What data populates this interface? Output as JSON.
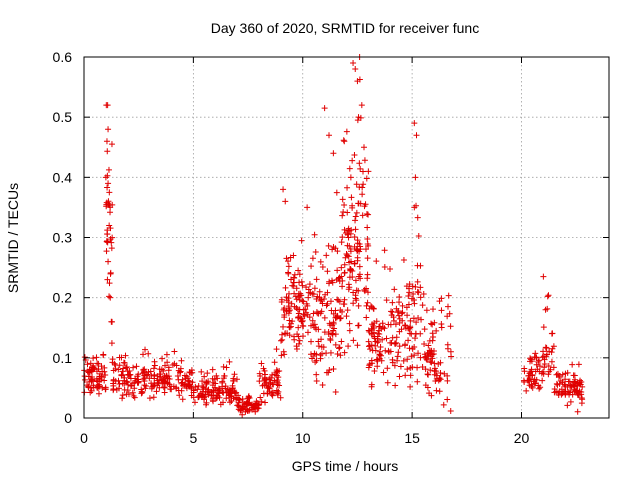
{
  "chart_data": {
    "type": "scatter",
    "title": "Day 360 of 2020, SRMTID for receiver func",
    "xlabel": "GPS time / hours",
    "ylabel": "SRMTID / TECUs",
    "xlim": [
      0,
      24
    ],
    "ylim": [
      0,
      0.6
    ],
    "xticks": [
      0,
      5,
      10,
      15,
      20
    ],
    "xtick_labels": [
      "0",
      "5",
      "10",
      "15",
      "20"
    ],
    "yticks": [
      0,
      0.1,
      0.2,
      0.3,
      0.4,
      0.5,
      0.6
    ],
    "ytick_labels": [
      "0",
      "0.1",
      "0.2",
      "0.3",
      "0.4",
      "0.5",
      "0.6"
    ],
    "grid": true,
    "marker": "+",
    "color": "#e00000",
    "series": [
      {
        "name": "SRMTID",
        "segments": [
          {
            "x": [
              0.0,
              1.0
            ],
            "mean": 0.065,
            "spread": 0.035,
            "n": 70
          },
          {
            "x": [
              1.0,
              1.3
            ],
            "mean": 0.3,
            "spread": 0.2,
            "n": 35
          },
          {
            "x": [
              1.3,
              5.0
            ],
            "mean": 0.06,
            "spread": 0.035,
            "n": 200
          },
          {
            "x": [
              5.0,
              7.0
            ],
            "mean": 0.045,
            "spread": 0.03,
            "n": 120
          },
          {
            "x": [
              7.0,
              8.0
            ],
            "mean": 0.02,
            "spread": 0.018,
            "n": 60
          },
          {
            "x": [
              8.0,
              9.0
            ],
            "mean": 0.06,
            "spread": 0.04,
            "n": 60
          },
          {
            "x": [
              9.0,
              10.5
            ],
            "mean": 0.17,
            "spread": 0.1,
            "n": 120
          },
          {
            "x": [
              10.5,
              11.8
            ],
            "mean": 0.16,
            "spread": 0.13,
            "n": 110
          },
          {
            "x": [
              11.8,
              13.0
            ],
            "mean": 0.27,
            "spread": 0.2,
            "n": 130
          },
          {
            "x": [
              13.0,
              14.5
            ],
            "mean": 0.12,
            "spread": 0.09,
            "n": 110
          },
          {
            "x": [
              14.5,
              15.5
            ],
            "mean": 0.15,
            "spread": 0.13,
            "n": 70
          },
          {
            "x": [
              15.5,
              16.8
            ],
            "mean": 0.1,
            "spread": 0.09,
            "n": 80
          },
          {
            "x": [
              20.1,
              21.0
            ],
            "mean": 0.07,
            "spread": 0.05,
            "n": 50
          },
          {
            "x": [
              21.0,
              21.5
            ],
            "mean": 0.1,
            "spread": 0.08,
            "n": 25
          },
          {
            "x": [
              21.5,
              22.8
            ],
            "mean": 0.045,
            "spread": 0.035,
            "n": 80
          }
        ],
        "notable_points": [
          {
            "x": 1.02,
            "y": 0.52
          },
          {
            "x": 1.08,
            "y": 0.52
          },
          {
            "x": 1.1,
            "y": 0.48
          },
          {
            "x": 1.05,
            "y": 0.46
          },
          {
            "x": 1.0,
            "y": 0.4
          },
          {
            "x": 1.1,
            "y": 0.39
          },
          {
            "x": 1.15,
            "y": 0.32
          },
          {
            "x": 1.1,
            "y": 0.26
          },
          {
            "x": 1.2,
            "y": 0.2
          },
          {
            "x": 1.25,
            "y": 0.16
          },
          {
            "x": 9.1,
            "y": 0.38
          },
          {
            "x": 9.2,
            "y": 0.36
          },
          {
            "x": 10.2,
            "y": 0.35
          },
          {
            "x": 11.0,
            "y": 0.515
          },
          {
            "x": 11.2,
            "y": 0.47
          },
          {
            "x": 11.4,
            "y": 0.44
          },
          {
            "x": 11.9,
            "y": 0.46
          },
          {
            "x": 12.3,
            "y": 0.59
          },
          {
            "x": 12.4,
            "y": 0.58
          },
          {
            "x": 12.5,
            "y": 0.56
          },
          {
            "x": 12.6,
            "y": 0.6
          },
          {
            "x": 12.7,
            "y": 0.52
          },
          {
            "x": 12.55,
            "y": 0.5
          },
          {
            "x": 12.8,
            "y": 0.45
          },
          {
            "x": 12.2,
            "y": 0.4
          },
          {
            "x": 13.0,
            "y": 0.41
          },
          {
            "x": 15.1,
            "y": 0.49
          },
          {
            "x": 15.2,
            "y": 0.47
          },
          {
            "x": 15.15,
            "y": 0.4
          },
          {
            "x": 15.1,
            "y": 0.35
          },
          {
            "x": 21.0,
            "y": 0.235
          },
          {
            "x": 21.1,
            "y": 0.18
          }
        ]
      }
    ]
  }
}
